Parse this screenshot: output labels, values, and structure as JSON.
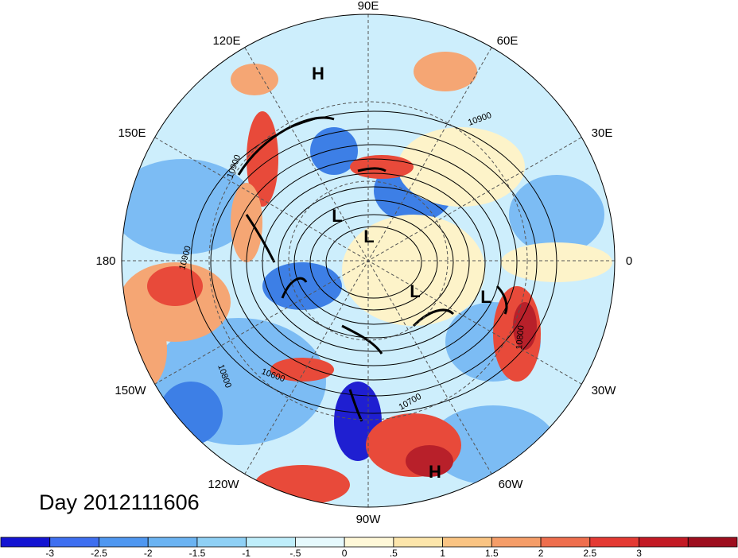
{
  "map": {
    "projection": "north-polar-stereographic",
    "longitude_labels": {
      "e90": "90E",
      "e60": "60E",
      "e30": "30E",
      "lon0": "0",
      "w30": "30W",
      "w60": "60W",
      "w90": "90W",
      "w120": "120W",
      "w150": "150W",
      "lon180": "180",
      "e150": "150E",
      "e120": "120E"
    },
    "pressure_centers": [
      "H",
      "L",
      "L",
      "L",
      "L",
      "H"
    ],
    "contour_labels": [
      "10900",
      "10900",
      "10900",
      "10800",
      "10800",
      "10600",
      "10700"
    ],
    "colors": {
      "deep_blue": "#1f1fd1",
      "blue": "#3d7fe6",
      "light_blue": "#7cbcf4",
      "pale_blue": "#cdeefc",
      "cream": "#fdf3c9",
      "orange": "#f5a674",
      "red": "#e84a3a",
      "dark_red": "#b8202a"
    }
  },
  "day_label": "Day 2012111606",
  "colorbar": {
    "colors": [
      "#1414d2",
      "#3e6ff0",
      "#4f97f0",
      "#6bb3f2",
      "#8fd0f5",
      "#bfeefb",
      "#e6f9fd",
      "#fff8d8",
      "#fde6ab",
      "#fac483",
      "#f59d68",
      "#ee6e4d",
      "#e43a33",
      "#c31a24",
      "#9d0e1e"
    ],
    "ticks": [
      "-3",
      "-2.5",
      "-2",
      "-1.5",
      "-1",
      "-.5",
      "0",
      ".5",
      "1",
      "1.5",
      "2",
      "2.5",
      "3"
    ]
  }
}
